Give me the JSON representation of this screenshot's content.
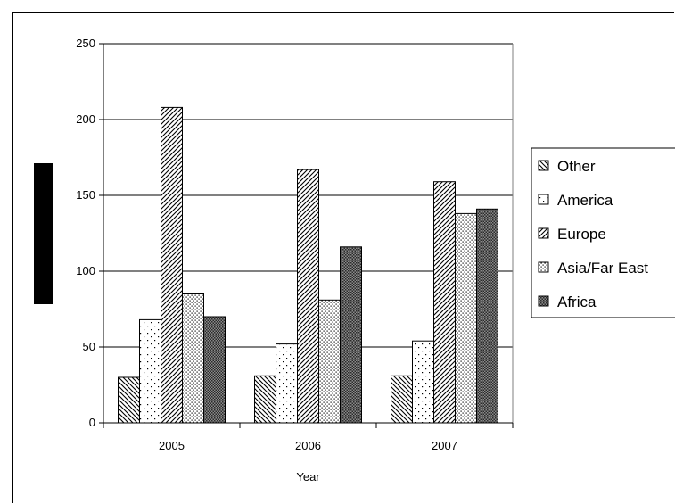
{
  "chart_data": {
    "type": "bar",
    "title": "",
    "xlabel": "Year",
    "ylabel": "",
    "categories": [
      "2005",
      "2006",
      "2007"
    ],
    "ylim": [
      0,
      250
    ],
    "yticks": [
      0,
      50,
      100,
      150,
      200,
      250
    ],
    "grid": true,
    "legend": "right",
    "series": [
      {
        "name": "Other",
        "values": [
          30,
          31,
          31
        ],
        "pattern": "diag-back"
      },
      {
        "name": "America",
        "values": [
          68,
          52,
          54
        ],
        "pattern": "dots-sparse"
      },
      {
        "name": "Europe",
        "values": [
          208,
          167,
          159
        ],
        "pattern": "diag-fwd"
      },
      {
        "name": "Asia/Far East",
        "values": [
          85,
          81,
          138
        ],
        "pattern": "dots-dense"
      },
      {
        "name": "Africa",
        "values": [
          70,
          116,
          141
        ],
        "pattern": "dark-cross"
      }
    ]
  }
}
